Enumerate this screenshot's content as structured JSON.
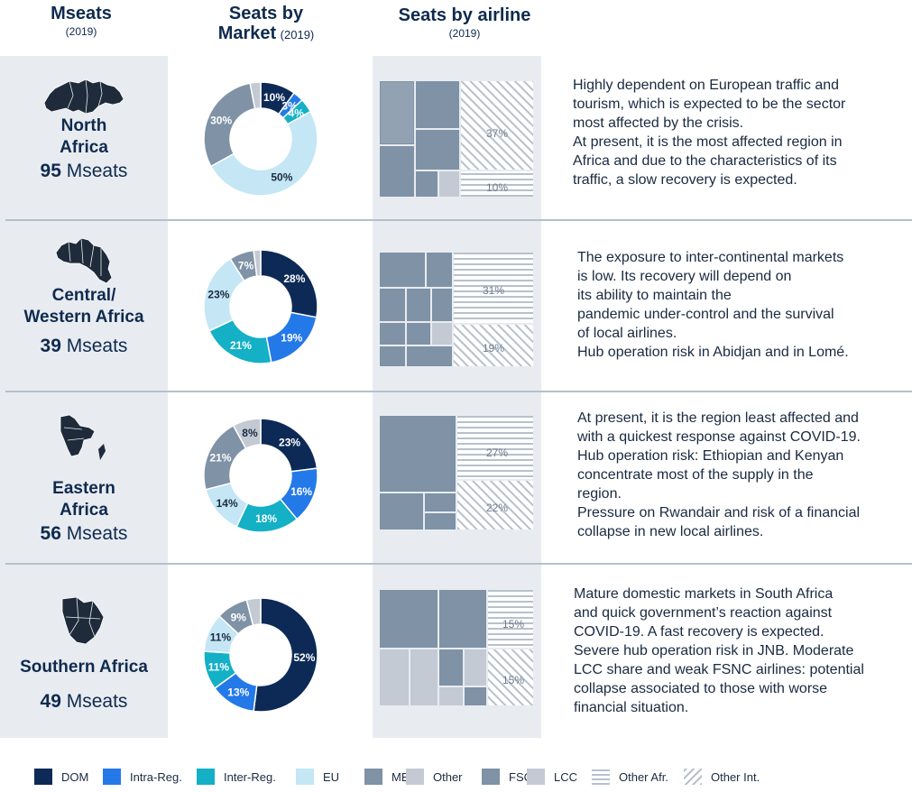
{
  "headers": {
    "mseats": {
      "title": "Mseats",
      "year": "(2019)"
    },
    "market": {
      "title_line1": "Seats by",
      "title_line2": "Market",
      "year": "(2019)"
    },
    "airline": {
      "title": "Seats by airline",
      "year": "(2019)"
    }
  },
  "colors": {
    "DOM": "#0d2a57",
    "Intra-Reg.": "#2479e8",
    "Inter-Reg.": "#13b0c6",
    "EU": "#c4e6f5",
    "ME": "#7f92a6",
    "Other": "#c3cad3",
    "FSC": "#7f92a6",
    "LCC": "#c3cad3"
  },
  "regions": [
    {
      "name": "North\nAfrica",
      "mseats_num": "95",
      "mseats_unit": " Mseats",
      "map_icon": "north-africa-map-icon",
      "description": "Highly dependent on European traffic and\ntourism, which is expected to be the sector\nmost affected by the crisis.\nAt present, it is the most affected region in\nAfrica and due to the characteristics of its\ntraffic, a slow recovery is expected.",
      "tree_other_afr": "37%",
      "tree_other_int": "10%"
    },
    {
      "name": "Central/\nWestern Africa",
      "mseats_num": "39",
      "mseats_unit": " Mseats",
      "map_icon": "central-western-africa-map-icon",
      "description": "The exposure to inter-continental markets\nis low. Its recovery will depend on\nits ability to maintain the\npandemic under-control and  the survival\nof local airlines.\nHub operation risk in Abidjan and in Lomé.",
      "tree_other_afr": "31%",
      "tree_other_int": "19%"
    },
    {
      "name": "Eastern\nAfrica",
      "mseats_num": "56",
      "mseats_unit": " Mseats",
      "map_icon": "eastern-africa-map-icon",
      "description": "At present, it is the region least affected and\nwith a quickest response against COVID-19.\nHub operation risk: Ethiopian and Kenyan\nconcentrate most of the supply in the\nregion.\nPressure on Rwandair and risk of a financial\ncollapse in new local airlines.",
      "tree_other_afr": "27%",
      "tree_other_int": "22%"
    },
    {
      "name": "Southern Africa",
      "mseats_num": "49",
      "mseats_unit": " Mseats",
      "map_icon": "southern-africa-map-icon",
      "description": "Mature domestic markets in South Africa\nand quick government’s reaction against\nCOVID-19. A fast recovery is expected.\nSevere hub operation risk in JNB. Moderate\nLCC share and weak FSNC airlines: potential\ncollapse associated to those with worse\nfinancial situation.",
      "tree_other_afr": "15%",
      "tree_other_int": "15%"
    }
  ],
  "legend": [
    {
      "label": "DOM",
      "swatch": "DOM"
    },
    {
      "label": "Intra-Reg.",
      "swatch": "Intra-Reg."
    },
    {
      "label": "Inter-Reg.",
      "swatch": "Inter-Reg."
    },
    {
      "label": "EU",
      "swatch": "EU"
    },
    {
      "label": "ME",
      "swatch": "ME"
    },
    {
      "label": "Other",
      "swatch": "Other"
    },
    {
      "label": "FSC",
      "swatch": "FSC"
    },
    {
      "label": "LCC",
      "swatch": "LCC"
    },
    {
      "label": "Other Afr.",
      "swatch": "horizontal-stripes"
    },
    {
      "label": "Other Int.",
      "swatch": "diagonal-stripes"
    }
  ],
  "chart_data": [
    {
      "type": "pie",
      "title": "North Africa",
      "categories": [
        "DOM",
        "Intra-Reg.",
        "Inter-Reg.",
        "EU",
        "ME",
        "Other"
      ],
      "values": [
        10,
        3,
        4,
        50,
        30,
        3
      ],
      "data_labels": [
        "10%",
        "3%",
        "4%",
        "50%",
        "30%",
        ""
      ]
    },
    {
      "type": "pie",
      "title": "Central/Western Africa",
      "categories": [
        "DOM",
        "Intra-Reg.",
        "Inter-Reg.",
        "EU",
        "ME",
        "Other"
      ],
      "values": [
        28,
        19,
        21,
        23,
        7,
        2
      ],
      "data_labels": [
        "28%",
        "19%",
        "21%",
        "23%",
        "7%",
        ""
      ]
    },
    {
      "type": "pie",
      "title": "Eastern Africa",
      "categories": [
        "DOM",
        "Intra-Reg.",
        "Inter-Reg.",
        "EU",
        "ME",
        "Other"
      ],
      "values": [
        23,
        16,
        18,
        14,
        21,
        8
      ],
      "data_labels": [
        "23%",
        "16%",
        "18%",
        "14%",
        "21%",
        "8%"
      ]
    },
    {
      "type": "pie",
      "title": "Southern Africa",
      "categories": [
        "DOM",
        "Intra-Reg.",
        "Inter-Reg.",
        "EU",
        "ME",
        "Other"
      ],
      "values": [
        52,
        13,
        11,
        11,
        9,
        4
      ],
      "data_labels": [
        "52%",
        "13%",
        "11%",
        "11%",
        "9%",
        ""
      ]
    }
  ]
}
